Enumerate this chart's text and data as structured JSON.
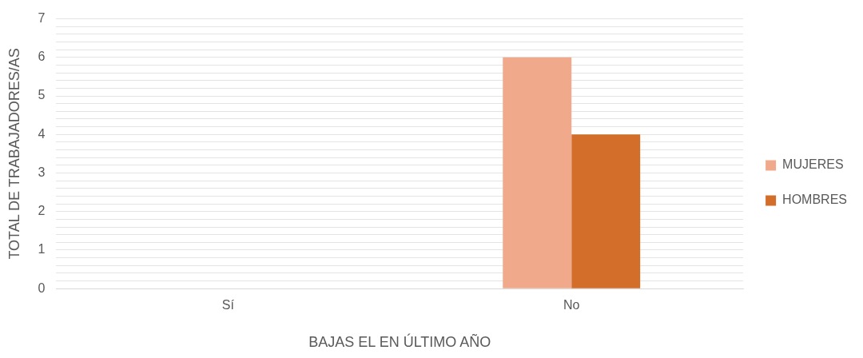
{
  "chart_data": {
    "type": "bar",
    "xlabel": "BAJAS EL EN ÚLTIMO AÑO",
    "ylabel": "TOTAL DE TRABAJADORES/AS",
    "categories": [
      "Sí",
      "No"
    ],
    "series": [
      {
        "name": "MUJERES",
        "color": "#f0a98a",
        "values": [
          0,
          6
        ]
      },
      {
        "name": "HOMBRES",
        "color": "#d26d2a",
        "values": [
          0,
          4
        ]
      }
    ],
    "ylim": [
      0,
      7
    ],
    "yticks": [
      0,
      {
        "value": 0.2,
        "label": null
      },
      {
        "value": 0.4,
        "label": null
      },
      {
        "value": 0.6,
        "label": null
      },
      {
        "value": 0.8,
        "label": null
      },
      1,
      {
        "value": 1.2,
        "label": null
      },
      {
        "value": 1.4,
        "label": null
      },
      {
        "value": 1.6,
        "label": null
      },
      {
        "value": 1.8,
        "label": null
      },
      2,
      {
        "value": 2.2,
        "label": null
      },
      {
        "value": 2.4,
        "label": null
      },
      {
        "value": 2.6,
        "label": null
      },
      {
        "value": 2.8,
        "label": null
      },
      3,
      {
        "value": 3.2,
        "label": null
      },
      {
        "value": 3.4,
        "label": null
      },
      {
        "value": 3.6,
        "label": null
      },
      {
        "value": 3.8,
        "label": null
      },
      4,
      {
        "value": 4.2,
        "label": null
      },
      {
        "value": 4.4,
        "label": null
      },
      {
        "value": 4.6,
        "label": null
      },
      {
        "value": 4.8,
        "label": null
      },
      5,
      {
        "value": 5.2,
        "label": null
      },
      {
        "value": 5.4,
        "label": null
      },
      {
        "value": 5.6,
        "label": null
      },
      {
        "value": 5.8,
        "label": null
      },
      6,
      {
        "value": 6.2,
        "label": null
      },
      {
        "value": 6.4,
        "label": null
      },
      {
        "value": 6.6,
        "label": null
      },
      {
        "value": 6.8,
        "label": null
      },
      7
    ],
    "grid": "y",
    "legend": "right"
  }
}
